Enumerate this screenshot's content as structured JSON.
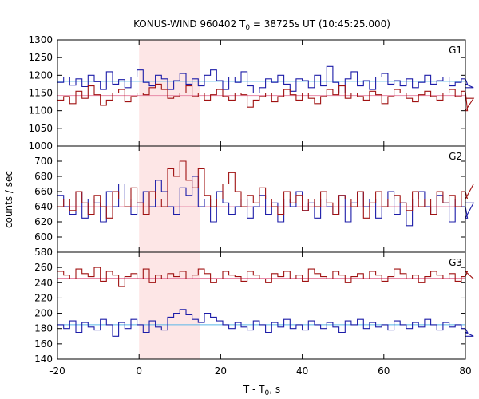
{
  "chart_data": {
    "type": "line",
    "title_parts": {
      "pre": "KONUS-WIND 960402 T",
      "sub": "0",
      "post": " = 38725s UT (10:45:25.000)"
    },
    "xlabel_parts": {
      "pre": "T - T",
      "sub": "0",
      "post": ", s"
    },
    "ylabel": "counts / sec",
    "xlim": [
      -20,
      80
    ],
    "xticks": [
      -20,
      0,
      20,
      40,
      60,
      80
    ],
    "highlight": {
      "x0": 0,
      "x1": 15,
      "color": "#fde6e6"
    },
    "colors": {
      "blue": "#1c1ca8",
      "red": "#a01212",
      "blue_bg": "#58b6e8",
      "red_bg": "#e88aa8"
    },
    "panels": [
      {
        "label": "G1",
        "ylim": [
          1000,
          1300
        ],
        "yticks": [
          1000,
          1050,
          1100,
          1150,
          1200,
          1250,
          1300
        ],
        "background": {
          "blue": 1183,
          "red": 1143
        },
        "bin": 1.5,
        "x_start": -20,
        "series": [
          {
            "name": "",
            "color_key": "blue",
            "values": [
              1180,
              1195,
              1172,
              1190,
              1168,
              1200,
              1182,
              1160,
              1210,
              1175,
              1188,
              1165,
              1195,
              1215,
              1180,
              1170,
              1200,
              1190,
              1160,
              1185,
              1205,
              1175,
              1190,
              1170,
              1200,
              1215,
              1185,
              1160,
              1195,
              1180,
              1210,
              1170,
              1150,
              1165,
              1190,
              1180,
              1200,
              1175,
              1155,
              1190,
              1185,
              1165,
              1200,
              1170,
              1225,
              1180,
              1150,
              1190,
              1210,
              1170,
              1185,
              1160,
              1195,
              1205,
              1175,
              1185,
              1170,
              1190,
              1165,
              1180,
              1200,
              1175,
              1185,
              1195,
              1170,
              1180,
              1190,
              1175,
              1165
            ]
          },
          {
            "name": "",
            "color_key": "red",
            "values": [
              1130,
              1140,
              1120,
              1155,
              1135,
              1170,
              1145,
              1115,
              1130,
              1150,
              1160,
              1125,
              1140,
              1150,
              1145,
              1165,
              1175,
              1160,
              1135,
              1140,
              1150,
              1170,
              1140,
              1150,
              1130,
              1145,
              1160,
              1140,
              1130,
              1150,
              1145,
              1110,
              1130,
              1140,
              1150,
              1125,
              1140,
              1160,
              1145,
              1130,
              1150,
              1135,
              1120,
              1140,
              1160,
              1145,
              1170,
              1135,
              1150,
              1140,
              1130,
              1155,
              1145,
              1120,
              1140,
              1160,
              1150,
              1135,
              1125,
              1145,
              1155,
              1140,
              1130,
              1150,
              1160,
              1140,
              1155,
              1100,
              1135
            ]
          }
        ]
      },
      {
        "label": "G2",
        "ylim": [
          580,
          720
        ],
        "yticks": [
          580,
          600,
          620,
          640,
          660,
          680,
          700
        ],
        "background": {
          "blue": 640,
          "red": 640
        },
        "bin": 1.5,
        "x_start": -20,
        "series": [
          {
            "name": "",
            "color_key": "blue",
            "values": [
              655,
              640,
              630,
              660,
              625,
              650,
              645,
              620,
              660,
              640,
              670,
              650,
              630,
              645,
              660,
              640,
              675,
              660,
              640,
              630,
              665,
              655,
              680,
              640,
              650,
              620,
              660,
              645,
              630,
              640,
              650,
              625,
              640,
              655,
              630,
              645,
              620,
              650,
              640,
              660,
              635,
              645,
              625,
              650,
              640,
              630,
              655,
              620,
              645,
              660,
              640,
              650,
              625,
              640,
              660,
              630,
              645,
              615,
              650,
              660,
              640,
              630,
              655,
              645,
              620,
              650,
              640,
              625,
              645
            ]
          },
          {
            "name": "",
            "color_key": "red",
            "values": [
              640,
              650,
              635,
              660,
              645,
              630,
              655,
              640,
              625,
              660,
              650,
              640,
              665,
              645,
              630,
              660,
              650,
              640,
              690,
              680,
              700,
              675,
              665,
              690,
              655,
              640,
              650,
              670,
              685,
              660,
              640,
              655,
              645,
              665,
              650,
              640,
              630,
              660,
              645,
              655,
              635,
              650,
              640,
              660,
              645,
              630,
              655,
              650,
              640,
              660,
              625,
              645,
              660,
              640,
              650,
              655,
              645,
              635,
              660,
              640,
              650,
              630,
              660,
              645,
              655,
              640,
              660,
              650,
              670
            ]
          }
        ]
      },
      {
        "label": "G3",
        "ylim": [
          140,
          280
        ],
        "yticks": [
          140,
          160,
          180,
          200,
          220,
          240,
          260,
          280
        ],
        "background": {
          "blue": 185,
          "red": 246
        },
        "bin": 1.5,
        "x_start": -20,
        "series": [
          {
            "name": "",
            "color_key": "blue",
            "values": [
              185,
              180,
              190,
              175,
              188,
              182,
              178,
              192,
              185,
              170,
              188,
              180,
              192,
              185,
              175,
              190,
              182,
              178,
              195,
              200,
              205,
              198,
              192,
              188,
              200,
              195,
              190,
              185,
              180,
              188,
              182,
              178,
              190,
              185,
              175,
              188,
              182,
              192,
              180,
              185,
              178,
              190,
              185,
              180,
              188,
              182,
              175,
              190,
              185,
              192,
              180,
              188,
              182,
              185,
              178,
              190,
              185,
              180,
              188,
              182,
              192,
              185,
              178,
              188,
              182,
              185,
              180,
              175,
              170
            ]
          },
          {
            "name": "",
            "color_key": "red",
            "values": [
              255,
              250,
              245,
              258,
              252,
              248,
              260,
              242,
              255,
              250,
              235,
              248,
              252,
              245,
              258,
              240,
              250,
              245,
              252,
              248,
              255,
              245,
              250,
              258,
              252,
              240,
              245,
              255,
              250,
              248,
              242,
              255,
              250,
              245,
              240,
              252,
              248,
              255,
              245,
              250,
              242,
              258,
              252,
              248,
              245,
              255,
              250,
              240,
              248,
              252,
              245,
              255,
              250,
              242,
              248,
              258,
              252,
              245,
              250,
              240,
              248,
              255,
              250,
              245,
              252,
              242,
              248,
              255,
              245
            ]
          }
        ]
      }
    ]
  }
}
